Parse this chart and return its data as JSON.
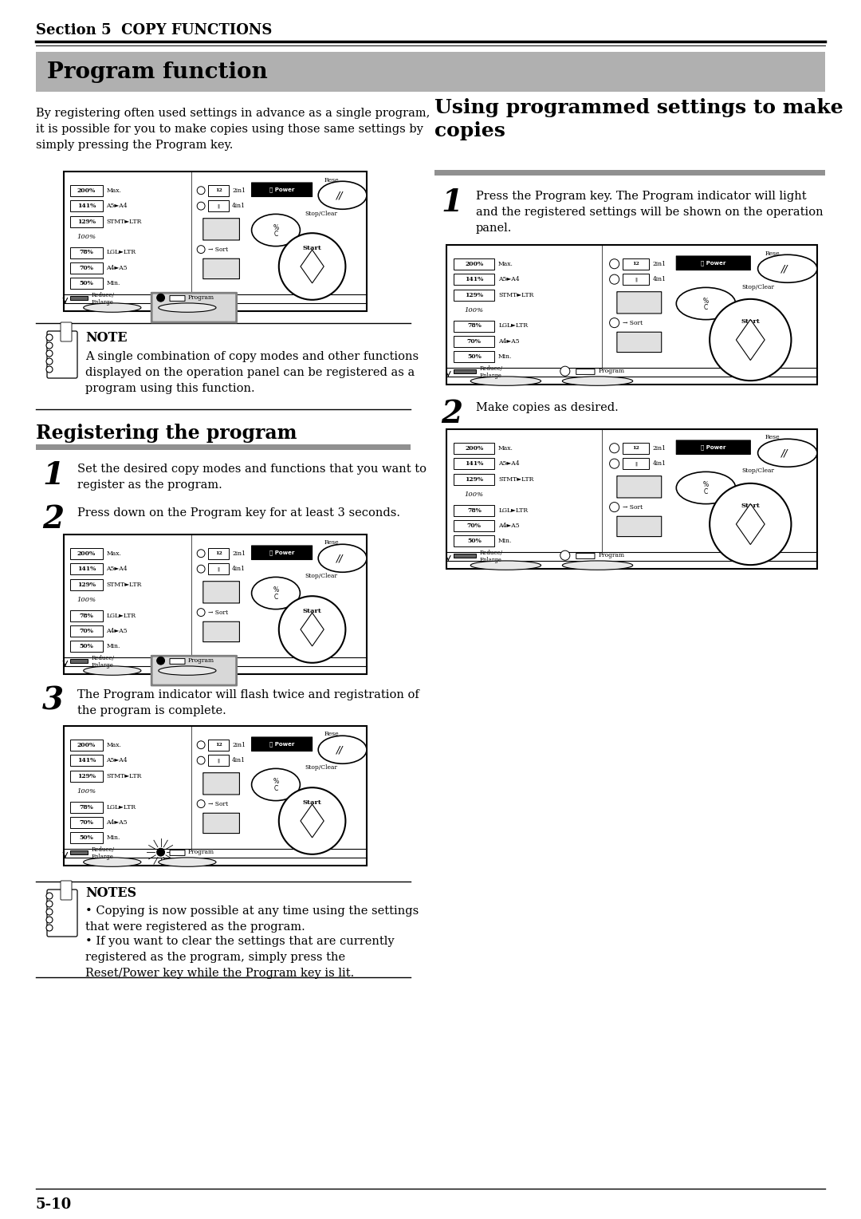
{
  "page_title": "Section 5  COPY FUNCTIONS",
  "section_title": "Program function",
  "section_title2": "Registering the program",
  "section_title3": "Using programmed settings to make copies",
  "intro_text": "By registering often used settings in advance as a single program,\nit is possible for you to make copies using those same settings by\nsimply pressing the Program key.",
  "note_title": "NOTE",
  "note_text": "A single combination of copy modes and other functions\ndisplayed on the operation panel can be registered as a\nprogram using this function.",
  "notes_title": "NOTES",
  "notes_bullet1": "Copying is now possible at any time using the settings\nthat were registered as the program.",
  "notes_bullet2": "If you want to clear the settings that are currently\nregistered as the program, simply press the\nReset/Power key while the Program key is lit.",
  "step1_reg": "Set the desired copy modes and functions that you want to\nregister as the program.",
  "step2_reg": "Press down on the Program key for at least 3 seconds.",
  "step3_reg": "The Program indicator will flash twice and registration of\nthe program is complete.",
  "step1_use": "Press the Program key. The Program indicator will light\nand the registered settings will be shown on the operation\npanel.",
  "step2_use": "Make copies as desired.",
  "bg_color": "#ffffff",
  "banner_color": "#b0b0b0",
  "bar_color": "#999999",
  "page_number": "5-10"
}
